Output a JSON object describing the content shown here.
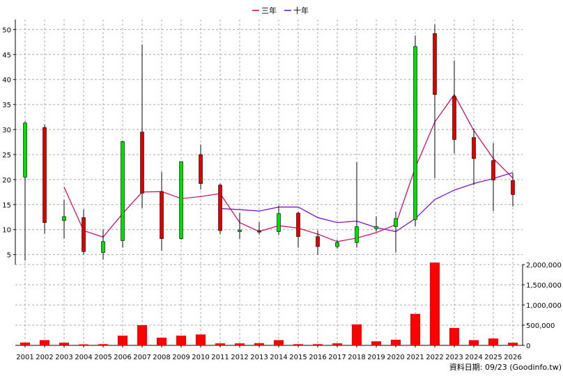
{
  "chart_data": {
    "type": "candlestick",
    "legend": [
      {
        "name": "三年",
        "color": "#cc0066"
      },
      {
        "name": "十年",
        "color": "#7700cc"
      }
    ],
    "categories": [
      "2001",
      "2002",
      "2003",
      "2004",
      "2005",
      "2006",
      "2007",
      "2008",
      "2009",
      "2010",
      "2011",
      "2012",
      "2013",
      "2014",
      "2015",
      "2016",
      "2017",
      "2018",
      "2019",
      "2020",
      "2021",
      "2022",
      "2023",
      "2024",
      "2025",
      "2026"
    ],
    "candles": [
      {
        "open": 20.5,
        "close": 31.3,
        "high": 31.6,
        "low": 3.8
      },
      {
        "open": 30.4,
        "close": 11.4,
        "high": 31.0,
        "low": 9.2
      },
      {
        "open": 11.8,
        "close": 12.6,
        "high": 16.0,
        "low": 8.2
      },
      {
        "open": 12.4,
        "close": 5.6,
        "high": 14.0,
        "low": 5.0
      },
      {
        "open": 5.4,
        "close": 7.6,
        "high": 10.0,
        "low": 4.0
      },
      {
        "open": 7.8,
        "close": 27.6,
        "high": 27.8,
        "low": 6.4
      },
      {
        "open": 29.5,
        "close": 17.3,
        "high": 47.0,
        "low": 14.3
      },
      {
        "open": 17.6,
        "close": 8.2,
        "high": 21.5,
        "low": 5.8
      },
      {
        "open": 8.2,
        "close": 23.6,
        "high": 23.6,
        "low": 8.0
      },
      {
        "open": 25.0,
        "close": 19.2,
        "high": 27.0,
        "low": 18.0
      },
      {
        "open": 18.9,
        "close": 9.8,
        "high": 19.2,
        "low": 9.1
      },
      {
        "open": 9.6,
        "close": 9.9,
        "high": 13.3,
        "low": 8.1
      },
      {
        "open": 9.8,
        "close": 9.5,
        "high": 11.5,
        "low": 9.0
      },
      {
        "open": 9.6,
        "close": 13.2,
        "high": 14.8,
        "low": 8.9
      },
      {
        "open": 13.3,
        "close": 8.6,
        "high": 13.6,
        "low": 6.4
      },
      {
        "open": 8.6,
        "close": 6.6,
        "high": 9.8,
        "low": 5.0
      },
      {
        "open": 6.6,
        "close": 7.4,
        "high": 8.0,
        "low": 6.2
      },
      {
        "open": 7.4,
        "close": 10.6,
        "high": 23.5,
        "low": 6.4
      },
      {
        "open": 10.2,
        "close": 10.6,
        "high": 12.6,
        "low": 9.6
      },
      {
        "open": 10.6,
        "close": 12.2,
        "high": 13.6,
        "low": 5.4
      },
      {
        "open": 12.0,
        "close": 46.6,
        "high": 48.8,
        "low": 10.6
      },
      {
        "open": 49.2,
        "close": 37.0,
        "high": 51.0,
        "low": 20.3
      },
      {
        "open": 36.6,
        "close": 28.0,
        "high": 43.8,
        "low": 25.2
      },
      {
        "open": 28.4,
        "close": 24.2,
        "high": 30.2,
        "low": 18.9
      },
      {
        "open": 23.8,
        "close": 19.9,
        "high": 27.3,
        "low": 13.7
      },
      {
        "open": 19.8,
        "close": 17.0,
        "high": 21.3,
        "low": 14.6
      }
    ],
    "series": [
      {
        "name": "三年",
        "color": "#cc0066",
        "values": [
          null,
          null,
          18.5,
          9.8,
          8.5,
          13.2,
          17.5,
          17.6,
          16.2,
          16.6,
          17.2,
          11.4,
          9.6,
          10.8,
          10.3,
          9.1,
          7.6,
          8.3,
          9.4,
          11.0,
          22.4,
          31.5,
          37.0,
          29.8,
          24.2,
          20.3
        ]
      },
      {
        "name": "十年",
        "color": "#7700cc",
        "values": [
          null,
          null,
          null,
          null,
          null,
          null,
          null,
          null,
          null,
          null,
          14.2,
          14.0,
          13.7,
          14.5,
          14.5,
          12.4,
          11.4,
          11.7,
          10.4,
          9.6,
          12.2,
          16.0,
          17.9,
          19.2,
          20.2,
          21.4
        ]
      }
    ],
    "volume": [
      70000,
      130000,
      65000,
      25000,
      30000,
      240000,
      500000,
      190000,
      240000,
      270000,
      50000,
      50000,
      55000,
      130000,
      30000,
      30000,
      50000,
      520000,
      100000,
      140000,
      780000,
      2050000,
      430000,
      130000,
      170000,
      65000
    ],
    "price_axis": {
      "min": 3,
      "max": 52,
      "ticks": [
        5,
        10,
        15,
        20,
        25,
        30,
        35,
        40,
        45,
        50
      ]
    },
    "volume_axis": {
      "min": 0,
      "max": 2000000,
      "ticks": [
        0,
        500000,
        1000000,
        1500000,
        2000000
      ],
      "tick_labels": [
        "0",
        "500,000",
        "1,000,000",
        "1,500,000",
        "2,000,000"
      ]
    },
    "grid": true,
    "legend_position": "top-center",
    "colors": {
      "up": "#00dd00",
      "down": "#dd0000",
      "volume": "#ff0000",
      "grid": "#aaaaaa"
    },
    "footer": "資料日期: 09/23  (Goodinfo.tw)"
  }
}
